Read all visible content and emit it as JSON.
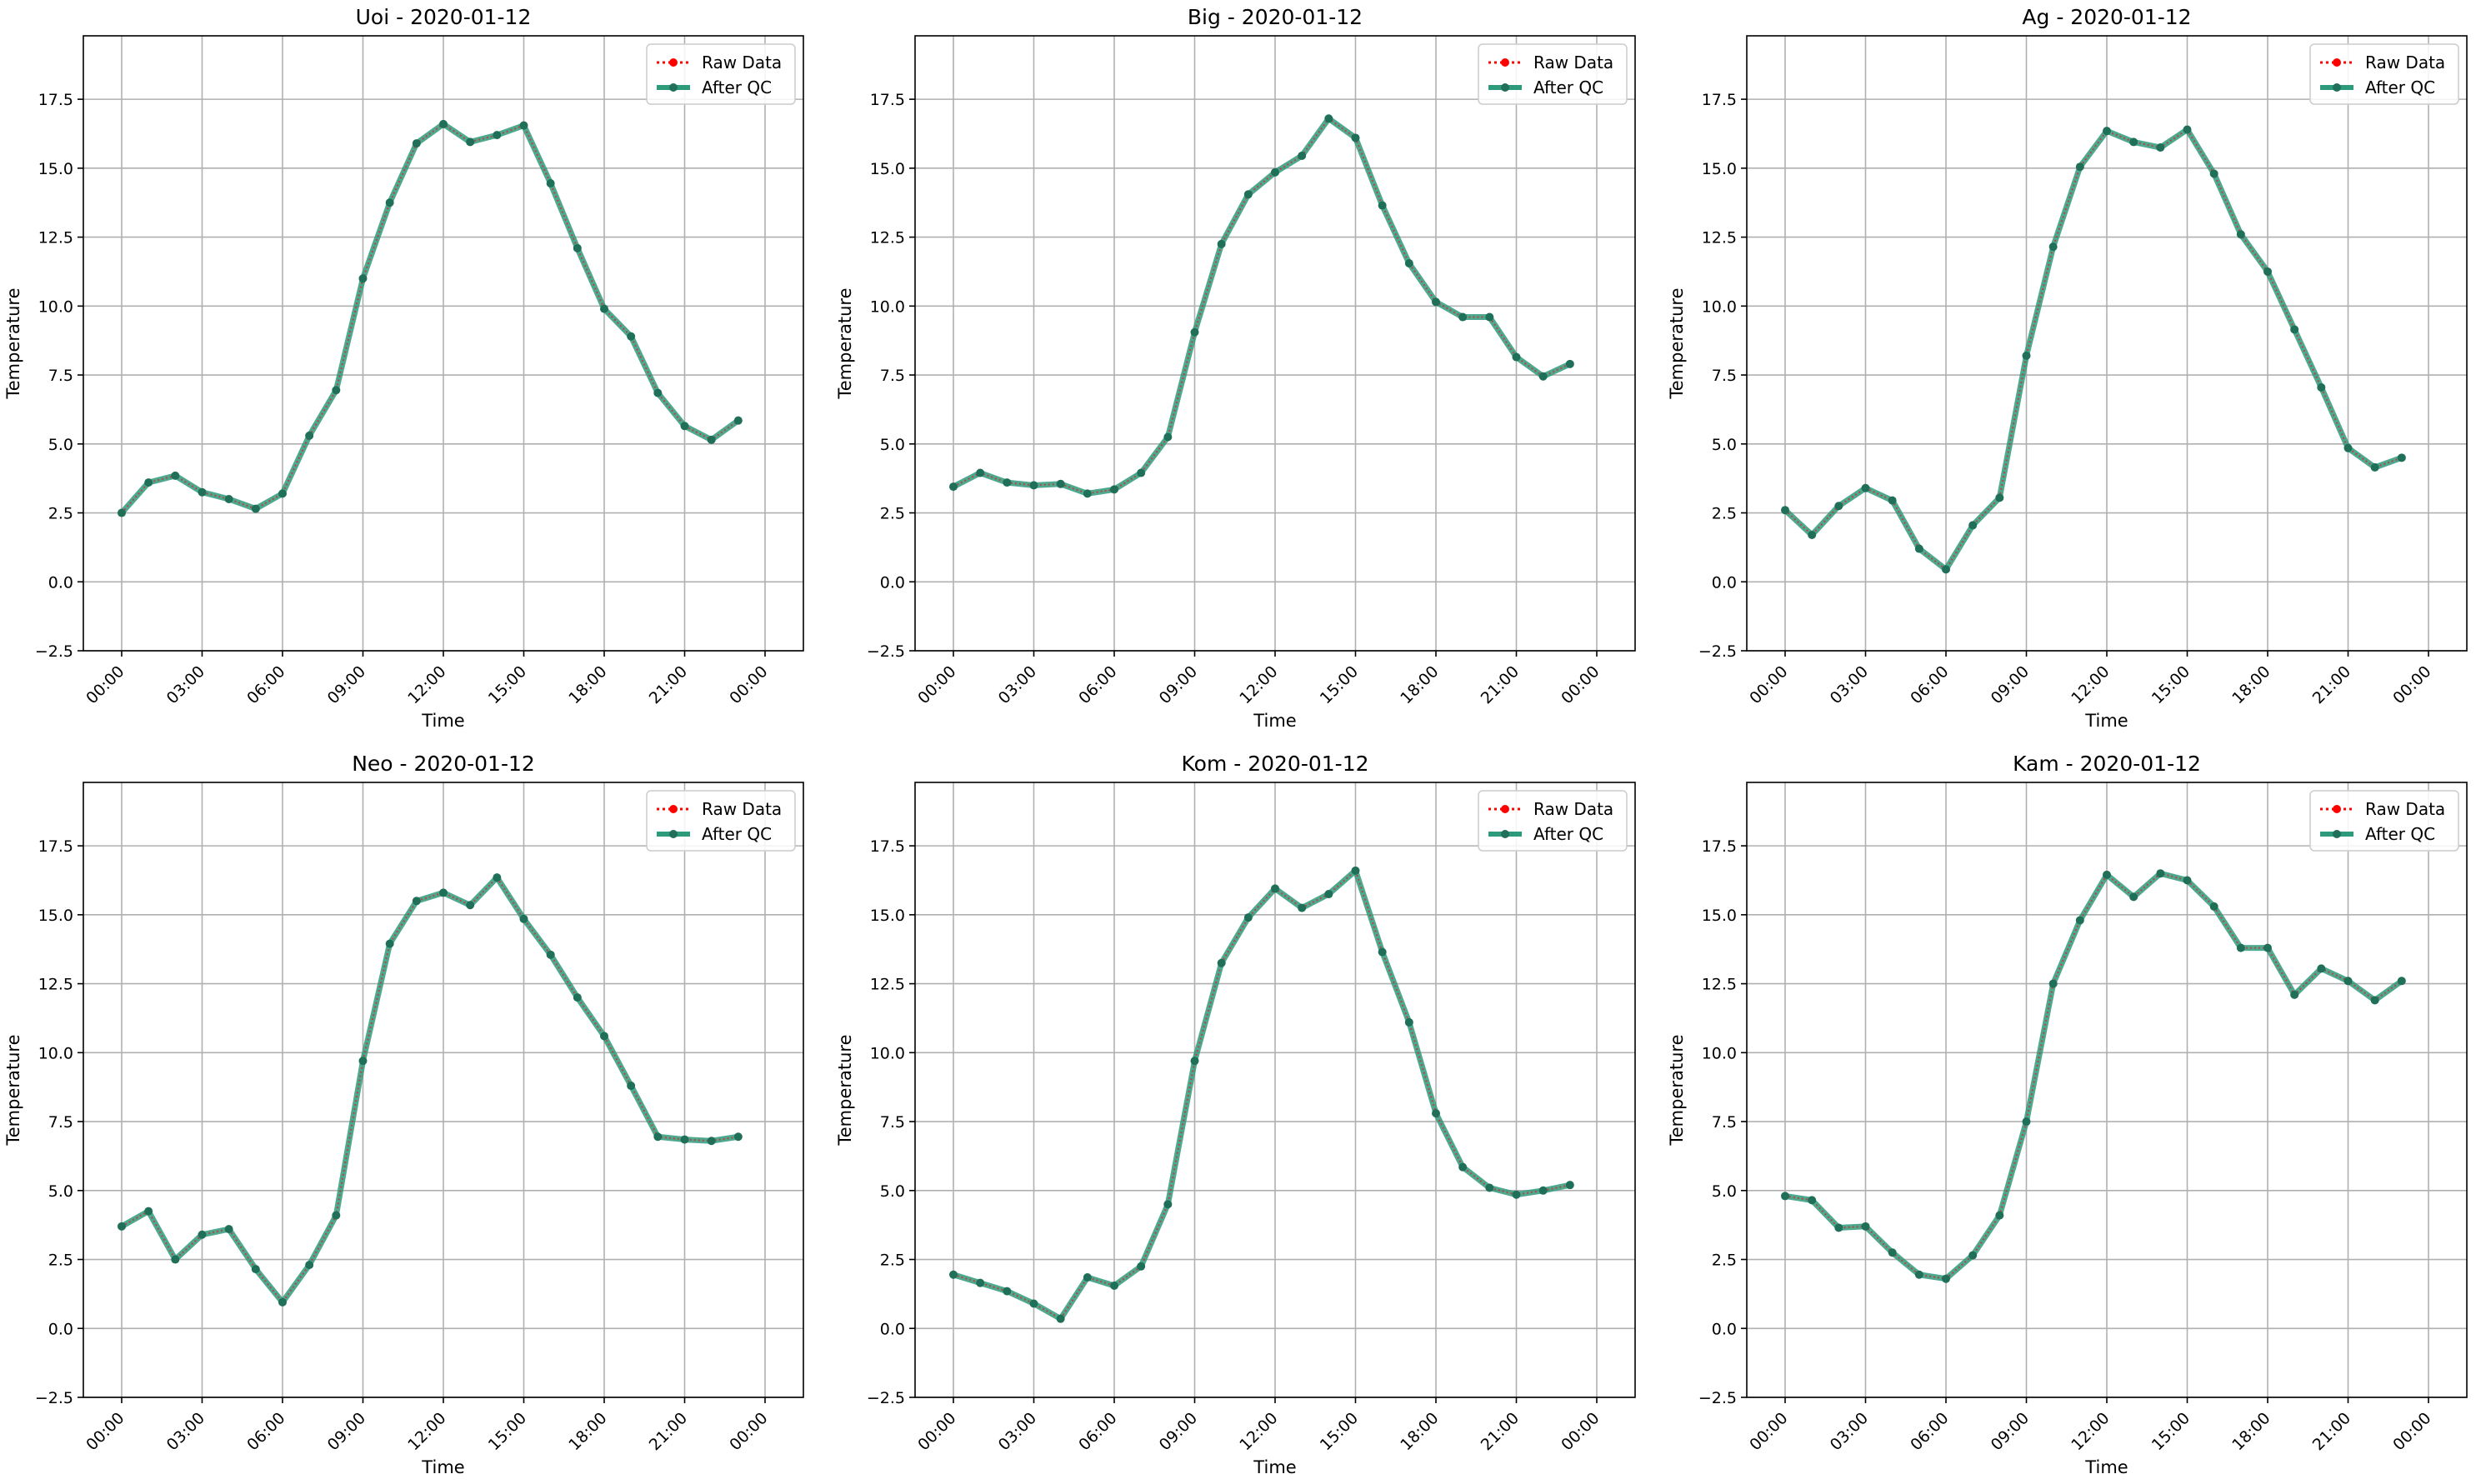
{
  "figure": {
    "legend_labels": [
      "Raw Data",
      "After QC"
    ],
    "colors": {
      "raw": "#ff0000",
      "qc_line": "#2e9a7c",
      "qc_marker": "#206f58",
      "grid": "#b0b0b0",
      "axes": "#000000"
    }
  },
  "chart_data": [
    {
      "type": "line",
      "title": "Uoi - 2020-01-12",
      "xlabel": "Time",
      "ylabel": "Temperature",
      "x": [
        "00:00",
        "01:00",
        "02:00",
        "03:00",
        "04:00",
        "05:00",
        "06:00",
        "07:00",
        "08:00",
        "09:00",
        "10:00",
        "11:00",
        "12:00",
        "13:00",
        "14:00",
        "15:00",
        "16:00",
        "17:00",
        "18:00",
        "19:00",
        "20:00",
        "21:00",
        "22:00",
        "23:00"
      ],
      "xticks": [
        "00:00",
        "03:00",
        "06:00",
        "09:00",
        "12:00",
        "15:00",
        "18:00",
        "21:00",
        "00:00"
      ],
      "yticks": [
        "−2.5",
        "0.0",
        "2.5",
        "5.0",
        "7.5",
        "10.0",
        "12.5",
        "15.0",
        "17.5"
      ],
      "ylim": [
        -2.5,
        19.8
      ],
      "grid": true,
      "legend_position": "upper right",
      "series": [
        {
          "name": "Raw Data",
          "style": "dotted",
          "values": [
            2.5,
            3.6,
            3.85,
            3.25,
            3.0,
            2.65,
            3.2,
            5.3,
            6.95,
            11.0,
            13.75,
            15.9,
            16.6,
            15.95,
            16.2,
            16.55,
            14.45,
            12.1,
            9.9,
            8.9,
            6.85,
            5.65,
            5.15,
            5.85
          ]
        },
        {
          "name": "After QC",
          "style": "solid",
          "values": [
            2.5,
            3.6,
            3.85,
            3.25,
            3.0,
            2.65,
            3.2,
            5.3,
            6.95,
            11.0,
            13.75,
            15.9,
            16.6,
            15.95,
            16.2,
            16.55,
            14.45,
            12.1,
            9.9,
            8.9,
            6.85,
            5.65,
            5.15,
            5.85
          ]
        }
      ]
    },
    {
      "type": "line",
      "title": "Big - 2020-01-12",
      "xlabel": "Time",
      "ylabel": "Temperature",
      "x": [
        "00:00",
        "01:00",
        "02:00",
        "03:00",
        "04:00",
        "05:00",
        "06:00",
        "07:00",
        "08:00",
        "09:00",
        "10:00",
        "11:00",
        "12:00",
        "13:00",
        "14:00",
        "15:00",
        "16:00",
        "17:00",
        "18:00",
        "19:00",
        "20:00",
        "21:00",
        "22:00",
        "23:00"
      ],
      "xticks": [
        "00:00",
        "03:00",
        "06:00",
        "09:00",
        "12:00",
        "15:00",
        "18:00",
        "21:00",
        "00:00"
      ],
      "yticks": [
        "−2.5",
        "0.0",
        "2.5",
        "5.0",
        "7.5",
        "10.0",
        "12.5",
        "15.0",
        "17.5"
      ],
      "ylim": [
        -2.5,
        19.8
      ],
      "grid": true,
      "legend_position": "upper right",
      "series": [
        {
          "name": "Raw Data",
          "style": "dotted",
          "values": [
            3.45,
            3.95,
            3.6,
            3.5,
            3.55,
            3.2,
            3.35,
            3.95,
            5.25,
            9.05,
            12.25,
            14.05,
            14.85,
            15.45,
            16.8,
            16.1,
            13.65,
            11.55,
            10.15,
            9.6,
            9.6,
            8.15,
            7.45,
            7.9
          ]
        },
        {
          "name": "After QC",
          "style": "solid",
          "values": [
            3.45,
            3.95,
            3.6,
            3.5,
            3.55,
            3.2,
            3.35,
            3.95,
            5.25,
            9.05,
            12.25,
            14.05,
            14.85,
            15.45,
            16.8,
            16.1,
            13.65,
            11.55,
            10.15,
            9.6,
            9.6,
            8.15,
            7.45,
            7.9
          ]
        }
      ]
    },
    {
      "type": "line",
      "title": "Ag - 2020-01-12",
      "xlabel": "Time",
      "ylabel": "Temperature",
      "x": [
        "00:00",
        "01:00",
        "02:00",
        "03:00",
        "04:00",
        "05:00",
        "06:00",
        "07:00",
        "08:00",
        "09:00",
        "10:00",
        "11:00",
        "12:00",
        "13:00",
        "14:00",
        "15:00",
        "16:00",
        "17:00",
        "18:00",
        "19:00",
        "20:00",
        "21:00",
        "22:00",
        "23:00"
      ],
      "xticks": [
        "00:00",
        "03:00",
        "06:00",
        "09:00",
        "12:00",
        "15:00",
        "18:00",
        "21:00",
        "00:00"
      ],
      "yticks": [
        "−2.5",
        "0.0",
        "2.5",
        "5.0",
        "7.5",
        "10.0",
        "12.5",
        "15.0",
        "17.5"
      ],
      "ylim": [
        -2.5,
        19.8
      ],
      "grid": true,
      "legend_position": "upper right",
      "series": [
        {
          "name": "Raw Data",
          "style": "dotted",
          "values": [
            2.6,
            1.7,
            2.75,
            3.4,
            2.95,
            1.2,
            0.45,
            2.05,
            3.05,
            8.2,
            12.15,
            15.05,
            16.35,
            15.95,
            15.75,
            16.4,
            14.8,
            12.6,
            11.25,
            9.15,
            7.05,
            4.85,
            4.15,
            4.5
          ]
        },
        {
          "name": "After QC",
          "style": "solid",
          "values": [
            2.6,
            1.7,
            2.75,
            3.4,
            2.95,
            1.2,
            0.45,
            2.05,
            3.05,
            8.2,
            12.15,
            15.05,
            16.35,
            15.95,
            15.75,
            16.4,
            14.8,
            12.6,
            11.25,
            9.15,
            7.05,
            4.85,
            4.15,
            4.5
          ]
        }
      ]
    },
    {
      "type": "line",
      "title": "Neo - 2020-01-12",
      "xlabel": "Time",
      "ylabel": "Temperature",
      "x": [
        "00:00",
        "01:00",
        "02:00",
        "03:00",
        "04:00",
        "05:00",
        "06:00",
        "07:00",
        "08:00",
        "09:00",
        "10:00",
        "11:00",
        "12:00",
        "13:00",
        "14:00",
        "15:00",
        "16:00",
        "17:00",
        "18:00",
        "19:00",
        "20:00",
        "21:00",
        "22:00",
        "23:00"
      ],
      "xticks": [
        "00:00",
        "03:00",
        "06:00",
        "09:00",
        "12:00",
        "15:00",
        "18:00",
        "21:00",
        "00:00"
      ],
      "yticks": [
        "−2.5",
        "0.0",
        "2.5",
        "5.0",
        "7.5",
        "10.0",
        "12.5",
        "15.0",
        "17.5"
      ],
      "ylim": [
        -2.5,
        19.8
      ],
      "grid": true,
      "legend_position": "upper right",
      "series": [
        {
          "name": "Raw Data",
          "style": "dotted",
          "values": [
            3.7,
            4.25,
            2.5,
            3.4,
            3.6,
            2.15,
            0.95,
            2.3,
            4.1,
            9.7,
            13.95,
            15.5,
            15.8,
            15.35,
            16.35,
            14.85,
            13.55,
            12.0,
            10.6,
            8.8,
            6.95,
            6.85,
            6.8,
            6.95
          ]
        },
        {
          "name": "After QC",
          "style": "solid",
          "values": [
            3.7,
            4.25,
            2.5,
            3.4,
            3.6,
            2.15,
            0.95,
            2.3,
            4.1,
            9.7,
            13.95,
            15.5,
            15.8,
            15.35,
            16.35,
            14.85,
            13.55,
            12.0,
            10.6,
            8.8,
            6.95,
            6.85,
            6.8,
            6.95
          ]
        }
      ]
    },
    {
      "type": "line",
      "title": "Kom - 2020-01-12",
      "xlabel": "Time",
      "ylabel": "Temperature",
      "x": [
        "00:00",
        "01:00",
        "02:00",
        "03:00",
        "04:00",
        "05:00",
        "06:00",
        "07:00",
        "08:00",
        "09:00",
        "10:00",
        "11:00",
        "12:00",
        "13:00",
        "14:00",
        "15:00",
        "16:00",
        "17:00",
        "18:00",
        "19:00",
        "20:00",
        "21:00",
        "22:00",
        "23:00"
      ],
      "xticks": [
        "00:00",
        "03:00",
        "06:00",
        "09:00",
        "12:00",
        "15:00",
        "18:00",
        "21:00",
        "00:00"
      ],
      "yticks": [
        "−2.5",
        "0.0",
        "2.5",
        "5.0",
        "7.5",
        "10.0",
        "12.5",
        "15.0",
        "17.5"
      ],
      "ylim": [
        -2.5,
        19.8
      ],
      "grid": true,
      "legend_position": "upper right",
      "series": [
        {
          "name": "Raw Data",
          "style": "dotted",
          "values": [
            1.95,
            1.65,
            1.35,
            0.9,
            0.35,
            1.85,
            1.55,
            2.25,
            4.5,
            9.7,
            13.25,
            14.9,
            15.95,
            15.25,
            15.75,
            16.6,
            13.65,
            11.1,
            7.8,
            5.85,
            5.1,
            4.85,
            5.0,
            5.2
          ]
        },
        {
          "name": "After QC",
          "style": "solid",
          "values": [
            1.95,
            1.65,
            1.35,
            0.9,
            0.35,
            1.85,
            1.55,
            2.25,
            4.5,
            9.7,
            13.25,
            14.9,
            15.95,
            15.25,
            15.75,
            16.6,
            13.65,
            11.1,
            7.8,
            5.85,
            5.1,
            4.85,
            5.0,
            5.2
          ]
        }
      ]
    },
    {
      "type": "line",
      "title": "Kam - 2020-01-12",
      "xlabel": "Time",
      "ylabel": "Temperature",
      "x": [
        "00:00",
        "01:00",
        "02:00",
        "03:00",
        "04:00",
        "05:00",
        "06:00",
        "07:00",
        "08:00",
        "09:00",
        "10:00",
        "11:00",
        "12:00",
        "13:00",
        "14:00",
        "15:00",
        "16:00",
        "17:00",
        "18:00",
        "19:00",
        "20:00",
        "21:00",
        "22:00",
        "23:00"
      ],
      "xticks": [
        "00:00",
        "03:00",
        "06:00",
        "09:00",
        "12:00",
        "15:00",
        "18:00",
        "21:00",
        "00:00"
      ],
      "yticks": [
        "−2.5",
        "0.0",
        "2.5",
        "5.0",
        "7.5",
        "10.0",
        "12.5",
        "15.0",
        "17.5"
      ],
      "ylim": [
        -2.5,
        19.8
      ],
      "grid": true,
      "legend_position": "upper right",
      "series": [
        {
          "name": "Raw Data",
          "style": "dotted",
          "values": [
            4.8,
            4.65,
            3.65,
            3.7,
            2.75,
            1.95,
            1.8,
            2.65,
            4.1,
            7.5,
            12.5,
            14.8,
            16.45,
            15.65,
            16.5,
            16.25,
            15.3,
            13.8,
            13.8,
            12.1,
            13.05,
            12.6,
            11.9,
            12.6
          ]
        },
        {
          "name": "After QC",
          "style": "solid",
          "values": [
            4.8,
            4.65,
            3.65,
            3.7,
            2.75,
            1.95,
            1.8,
            2.65,
            4.1,
            7.5,
            12.5,
            14.8,
            16.45,
            15.65,
            16.5,
            16.25,
            15.3,
            13.8,
            13.8,
            12.1,
            13.05,
            12.6,
            11.9,
            12.6
          ]
        }
      ]
    }
  ]
}
